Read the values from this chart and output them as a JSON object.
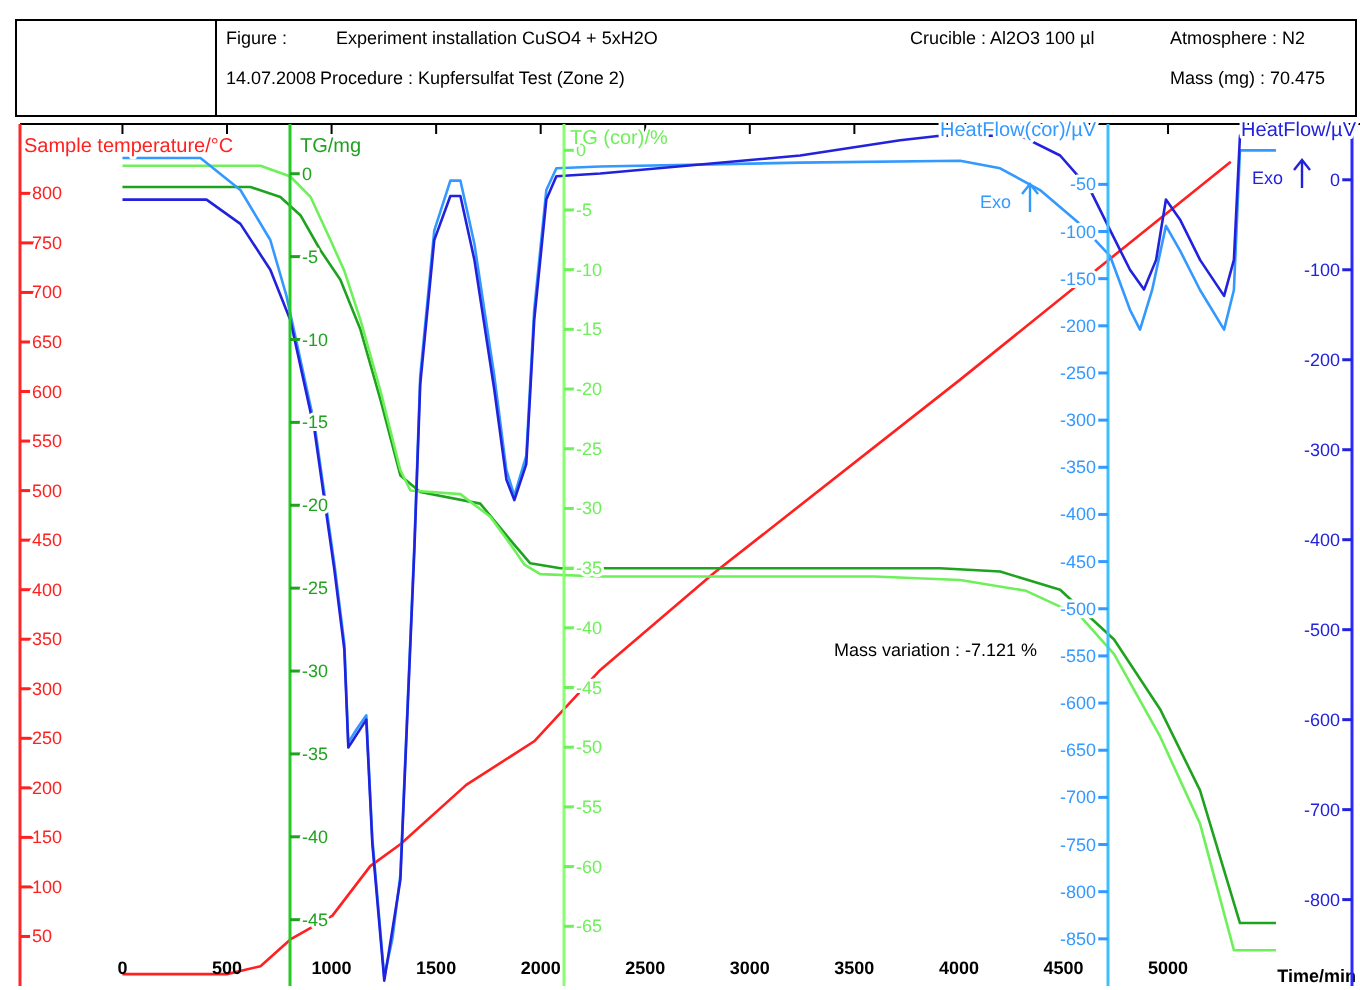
{
  "chart_data": [
    {
      "type": "line",
      "grid": false,
      "marker": "none",
      "xlabel": "Time/min",
      "ylabel": "Sample temperature/°C",
      "y2label": "TG/mg",
      "y3label": "TG (cor)/%",
      "xlim": [
        -490,
        5918
      ],
      "xticks": [
        0,
        500,
        1000,
        1500,
        2000,
        2500,
        3000,
        3500,
        4000,
        4500,
        5000
      ],
      "ylim": [
        0,
        870
      ],
      "yticks": [
        50,
        100,
        150,
        200,
        250,
        300,
        350,
        400,
        450,
        500,
        550,
        600,
        650,
        700,
        750,
        800
      ],
      "y2lim": [
        -49,
        3
      ],
      "y2ticks": [
        0,
        -5,
        -10,
        -15,
        -20,
        -25,
        -30,
        -35,
        -40,
        -45
      ],
      "y3lim": [
        -70,
        2.2
      ],
      "y3ticks": [
        0,
        -5,
        -10,
        -15,
        -20,
        -25,
        -30,
        -35,
        -40,
        -45,
        -50,
        -55,
        -60,
        -65
      ],
      "series": [
        {
          "color": "#ff2020",
          "axis": "y",
          "x": [
            0,
            500,
            660,
            803,
            1004,
            1185,
            1329,
            1644,
            1969,
            2285,
            2830,
            4006,
            4723,
            5300
          ],
          "values": [
            12,
            12,
            20,
            47,
            71,
            121,
            143,
            203,
            247,
            319,
            417,
            612,
            734,
            832
          ]
        },
        {
          "color": "#1fa31f",
          "axis": "y2",
          "x": [
            0,
            612,
            755,
            851,
            946,
            1042,
            1138,
            1233,
            1329,
            1424,
            1711,
            1855,
            1950,
            2094,
            3910,
            4197,
            4484,
            4742,
            4962,
            5153,
            5344,
            5516
          ],
          "values": [
            -0.8,
            -0.8,
            -1.4,
            -2.5,
            -4.6,
            -6.4,
            -9.4,
            -13.6,
            -18.2,
            -19.2,
            -19.9,
            -22.1,
            -23.5,
            -23.8,
            -23.8,
            -24.0,
            -25.1,
            -28.1,
            -32.3,
            -37.2,
            -45.2,
            -45.2
          ]
        },
        {
          "color": "#6ef05a",
          "axis": "y3",
          "x": [
            0,
            660,
            803,
            899,
            994,
            1061,
            1138,
            1233,
            1329,
            1377,
            1616,
            1759,
            1855,
            1922,
            1998,
            2285,
            3595,
            4006,
            4321,
            4579,
            4742,
            4962,
            5153,
            5315,
            5516
          ],
          "values": [
            -1.3,
            -1.3,
            -2.2,
            -3.9,
            -7.5,
            -10.1,
            -14.2,
            -20.1,
            -26.8,
            -28.5,
            -28.8,
            -30.7,
            -33.0,
            -34.7,
            -35.5,
            -35.7,
            -35.7,
            -36.0,
            -36.9,
            -39.0,
            -42.2,
            -49.1,
            -56.4,
            -67.0,
            -67.0
          ]
        }
      ],
      "annotations": [
        "Figure :",
        "Experiment installation CuSO4 + 5xH2O",
        "Crucible : Al2O3 100 µl",
        "Atmosphere : N2",
        "14.07.2008",
        "Procedure : Kupfersulfat Test (Zone 2)",
        "Mass (mg) : 70.475",
        "Mass variation : -7.121 %"
      ]
    },
    {
      "type": "line",
      "grid": false,
      "marker": "none",
      "ylabel": "HeatFlow(cor)/µV",
      "y2label": "HeatFlow/µV",
      "tick_labels": "y",
      "xlim": [
        -490,
        5918
      ],
      "ylim": [
        -900,
        14
      ],
      "yticks": [
        -50,
        -100,
        -150,
        -200,
        -250,
        -300,
        -350,
        -400,
        -450,
        -500,
        -550,
        -600,
        -650,
        -700,
        -750,
        -800,
        -850
      ],
      "y2lim": [
        -896,
        62
      ],
      "y2ticks": [
        0,
        -100,
        -200,
        -300,
        -400,
        -500,
        -600,
        -700,
        -800
      ],
      "series": [
        {
          "color": "#3399ff",
          "axis": "y",
          "x": [
            0,
            373,
            564,
            707,
            784,
            918,
            1013,
            1061,
            1080,
            1119,
            1166,
            1195,
            1252,
            1291,
            1329,
            1396,
            1424,
            1491,
            1568,
            1616,
            1683,
            1778,
            1836,
            1874,
            1931,
            1969,
            2027,
            2075,
            2285,
            3241,
            4006,
            4197,
            4388,
            4579,
            4723,
            4818,
            4866,
            4924,
            4990,
            5057,
            5153,
            5268,
            5315,
            5344,
            5516
          ],
          "values": [
            -22,
            -22,
            -56,
            -109,
            -168,
            -304,
            -452,
            -537,
            -642,
            -628,
            -613,
            -744,
            -890,
            -850,
            -782,
            -431,
            -253,
            -99,
            -46,
            -46,
            -113,
            -253,
            -353,
            -380,
            -338,
            -183,
            -56,
            -33,
            -31,
            -27,
            -25,
            -33,
            -56,
            -92,
            -126,
            -183,
            -204,
            -162,
            -94,
            -120,
            -162,
            -204,
            -162,
            -14,
            -14
          ]
        },
        {
          "color": "#2222dd",
          "axis": "y2",
          "x": [
            0,
            402,
            564,
            707,
            803,
            918,
            1013,
            1061,
            1080,
            1166,
            1195,
            1252,
            1329,
            1396,
            1424,
            1491,
            1568,
            1616,
            1683,
            1778,
            1836,
            1874,
            1931,
            1969,
            2027,
            2075,
            2285,
            3241,
            3719,
            3910,
            4293,
            4484,
            4627,
            4723,
            4818,
            4885,
            4943,
            4990,
            5057,
            5153,
            5268,
            5315,
            5344,
            5373,
            5516
          ],
          "values": [
            -22,
            -22,
            -49,
            -100,
            -156,
            -278,
            -433,
            -522,
            -631,
            -600,
            -738,
            -890,
            -778,
            -411,
            -227,
            -67,
            -18,
            -18,
            -89,
            -233,
            -333,
            -356,
            -316,
            -156,
            -22,
            4,
            7,
            27,
            44,
            49,
            49,
            27,
            -11,
            -56,
            -100,
            -122,
            -89,
            -22,
            -44,
            -89,
            -129,
            -89,
            49,
            56,
            56
          ]
        }
      ],
      "annotations": [
        "Exo",
        "Exo"
      ]
    }
  ]
}
